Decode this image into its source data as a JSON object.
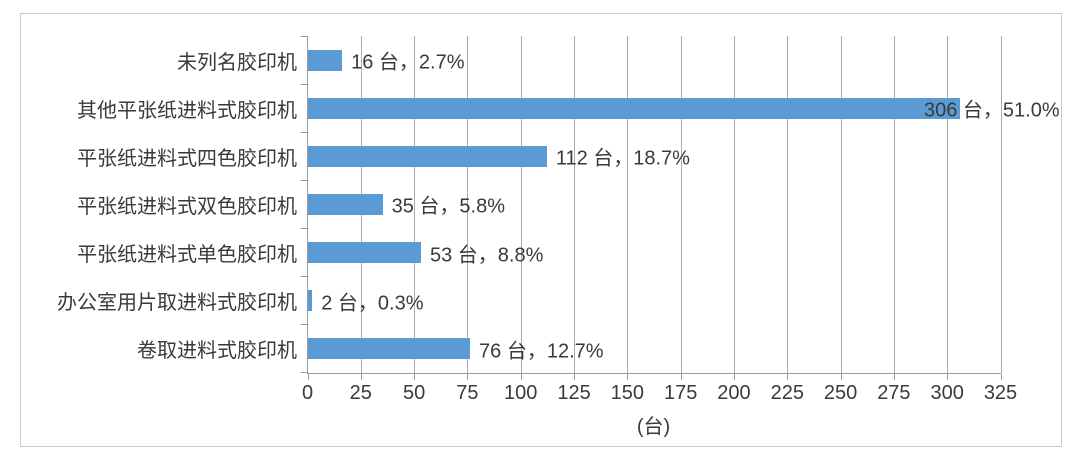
{
  "chart_data": {
    "type": "bar",
    "orientation": "horizontal",
    "title": "",
    "xlabel": "(台)",
    "unit": "台",
    "xlim": [
      0,
      325
    ],
    "xticks": [
      0,
      25,
      50,
      75,
      100,
      125,
      150,
      175,
      200,
      225,
      250,
      275,
      300,
      325
    ],
    "grid": true,
    "legend": false,
    "bar_color": "#5B9BD5",
    "grid_color": "#ABABAB",
    "axis_color": "#9B9B9B",
    "text_color": "#3A3A3A",
    "categories": [
      "未列名胶印机",
      "其他平张纸进料式胶印机",
      "平张纸进料式四色胶印机",
      "平张纸进料式双色胶印机",
      "平张纸进料式单色胶印机",
      "办公室用片取进料式胶印机",
      "卷取进料式胶印机"
    ],
    "values": [
      16,
      306,
      112,
      35,
      53,
      2,
      76
    ],
    "percentages": [
      2.7,
      51.0,
      18.7,
      5.8,
      8.8,
      0.3,
      12.7
    ],
    "data_labels": [
      "16 台，2.7%",
      "306 台，51.0%",
      "112 台，18.7%",
      "35 台，5.8%",
      "53 台，8.8%",
      "2 台，0.3%",
      "76 台，12.7%"
    ]
  }
}
